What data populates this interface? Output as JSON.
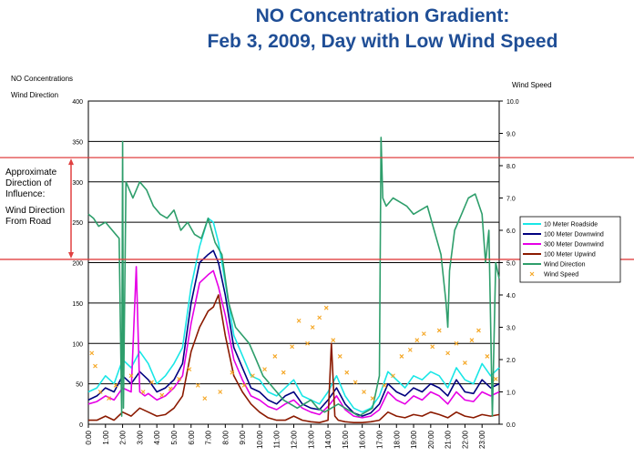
{
  "title_line1": "NO Concentration Gradient:",
  "title_line2": "Feb 3, 2009, Day with Low Wind Speed",
  "left_axis_label_1": "NO Concentrations",
  "left_axis_label_2": "Wind Direction",
  "right_axis_label": "Wind Speed",
  "annotation_1": "Approximate Direction of Influence:",
  "annotation_2": "Wind Direction From Road",
  "chart_data": {
    "type": "line",
    "y_left": {
      "ylim": [
        0,
        400
      ],
      "ticks": [
        0,
        50,
        100,
        150,
        200,
        250,
        300,
        350,
        400
      ]
    },
    "y_right": {
      "ylim": [
        0,
        10
      ],
      "ticks": [
        "0.0",
        "1.0",
        "2.0",
        "3.0",
        "4.0",
        "5.0",
        "6.0",
        "7.0",
        "8.0",
        "9.0",
        "10.0"
      ]
    },
    "x_ticks": [
      "0:00",
      "1:00",
      "2:00",
      "3:00",
      "4:00",
      "5:00",
      "6:00",
      "7:00",
      "8:00",
      "9:00",
      "10:00",
      "11:00",
      "12:00",
      "13:00",
      "14:00",
      "15:00",
      "16:00",
      "17:00",
      "18:00",
      "19:00",
      "20:00",
      "21:00",
      "22:00",
      "23:00"
    ],
    "xlim": [
      0,
      24
    ],
    "reference_lines": [
      330,
      204
    ],
    "reference_color": "#e04040",
    "series": [
      {
        "name": "10 Meter Roadside",
        "color": "#19e6e6",
        "axis": "left",
        "x": [
          0,
          0.5,
          1,
          1.5,
          2,
          2.5,
          3,
          3.5,
          4,
          4.5,
          5,
          5.5,
          6,
          6.5,
          7,
          7.3,
          7.6,
          8,
          8.5,
          9,
          9.5,
          10,
          10.5,
          11,
          11.5,
          12,
          12.5,
          13,
          13.5,
          14,
          14.5,
          15,
          15.5,
          16,
          16.5,
          17,
          17.5,
          18,
          18.5,
          19,
          19.5,
          20,
          20.5,
          21,
          21.5,
          22,
          22.5,
          23,
          23.5,
          24
        ],
        "y": [
          40,
          45,
          60,
          50,
          80,
          70,
          90,
          75,
          50,
          60,
          75,
          95,
          170,
          220,
          255,
          250,
          225,
          175,
          110,
          85,
          60,
          55,
          40,
          35,
          45,
          55,
          35,
          30,
          25,
          40,
          60,
          35,
          20,
          15,
          20,
          35,
          65,
          55,
          45,
          60,
          55,
          65,
          60,
          45,
          70,
          55,
          50,
          75,
          60,
          70
        ]
      },
      {
        "name": "100 Meter Downwind",
        "color": "#00007f",
        "axis": "left",
        "x": [
          0,
          0.5,
          1,
          1.5,
          2,
          2.5,
          3,
          3.5,
          4,
          4.5,
          5,
          5.5,
          6,
          6.5,
          7,
          7.3,
          7.6,
          8,
          8.5,
          9,
          9.5,
          10,
          10.5,
          11,
          11.5,
          12,
          12.5,
          13,
          13.5,
          14,
          14.5,
          15,
          15.5,
          16,
          16.5,
          17,
          17.5,
          18,
          18.5,
          19,
          19.5,
          20,
          20.5,
          21,
          21.5,
          22,
          22.5,
          23,
          23.5,
          24
        ],
        "y": [
          30,
          35,
          45,
          40,
          60,
          50,
          65,
          55,
          40,
          45,
          55,
          75,
          150,
          200,
          210,
          215,
          200,
          160,
          95,
          70,
          45,
          40,
          30,
          25,
          35,
          40,
          25,
          20,
          18,
          30,
          45,
          25,
          14,
          10,
          14,
          25,
          50,
          40,
          35,
          45,
          40,
          50,
          45,
          35,
          55,
          40,
          38,
          55,
          45,
          50
        ]
      },
      {
        "name": "300 Meter Downwind",
        "color": "#e600e6",
        "axis": "left",
        "x": [
          0,
          0.5,
          1,
          1.5,
          2,
          2.5,
          2.8,
          3,
          3.3,
          3.5,
          4,
          4.5,
          5,
          5.5,
          6,
          6.5,
          7,
          7.3,
          7.6,
          8,
          8.5,
          9,
          9.5,
          10,
          10.5,
          11,
          11.5,
          12,
          12.5,
          13,
          13.5,
          14,
          14.5,
          15,
          15.5,
          16,
          16.5,
          17,
          17.5,
          18,
          18.5,
          19,
          19.5,
          20,
          20.5,
          21,
          21.5,
          22,
          22.5,
          23,
          23.5,
          24
        ],
        "y": [
          25,
          28,
          35,
          30,
          45,
          40,
          195,
          40,
          35,
          38,
          30,
          35,
          45,
          60,
          125,
          175,
          185,
          190,
          170,
          135,
          80,
          55,
          35,
          30,
          22,
          18,
          25,
          30,
          20,
          15,
          12,
          22,
          35,
          18,
          10,
          8,
          10,
          18,
          40,
          30,
          25,
          35,
          30,
          40,
          35,
          25,
          40,
          30,
          28,
          40,
          35,
          40
        ]
      },
      {
        "name": "100 Meter Upwind",
        "color": "#8b1a00",
        "axis": "left",
        "x": [
          0,
          0.5,
          1,
          1.5,
          2,
          2.5,
          3,
          3.5,
          4,
          4.5,
          5,
          5.5,
          6,
          6.5,
          7,
          7.3,
          7.6,
          8,
          8.5,
          9,
          9.5,
          10,
          10.5,
          11,
          11.5,
          12,
          12.5,
          13,
          13.5,
          14,
          14.2,
          14.4,
          14.6,
          15,
          15.5,
          16,
          16.5,
          17,
          17.5,
          18,
          18.5,
          19,
          19.5,
          20,
          20.5,
          21,
          21.5,
          22,
          22.5,
          23,
          23.5,
          24
        ],
        "y": [
          5,
          5,
          10,
          5,
          15,
          10,
          20,
          15,
          10,
          12,
          20,
          35,
          90,
          120,
          140,
          145,
          160,
          110,
          60,
          40,
          25,
          15,
          8,
          5,
          5,
          10,
          5,
          3,
          2,
          5,
          100,
          10,
          5,
          3,
          2,
          2,
          3,
          5,
          15,
          10,
          8,
          12,
          10,
          15,
          12,
          8,
          15,
          10,
          8,
          12,
          10,
          12
        ]
      },
      {
        "name": "Wind Direction",
        "color": "#2e9e6b",
        "axis": "left",
        "x": [
          0,
          0.3,
          0.6,
          1,
          1.4,
          1.8,
          1.95,
          2,
          2.05,
          2.2,
          2.6,
          3,
          3.4,
          3.8,
          4.2,
          4.6,
          5,
          5.4,
          5.8,
          6.2,
          6.6,
          7,
          7.4,
          7.8,
          8.2,
          8.6,
          9,
          9.4,
          9.8,
          10.2,
          10.6,
          11,
          11.4,
          11.8,
          12.2,
          12.6,
          13,
          13.4,
          13.8,
          14.2,
          14.6,
          15,
          15.4,
          15.8,
          16.2,
          16.6,
          17,
          17.1,
          17.2,
          17.4,
          17.8,
          18.2,
          18.6,
          19,
          19.4,
          19.8,
          20.2,
          20.6,
          20.9,
          21,
          21.1,
          21.4,
          21.8,
          22.2,
          22.6,
          23,
          23.2,
          23.4,
          23.6,
          23.8,
          24
        ],
        "y": [
          260,
          255,
          245,
          250,
          240,
          230,
          10,
          350,
          20,
          300,
          280,
          300,
          290,
          270,
          260,
          255,
          265,
          240,
          250,
          235,
          230,
          255,
          225,
          210,
          150,
          120,
          110,
          100,
          80,
          60,
          50,
          40,
          30,
          25,
          20,
          25,
          30,
          20,
          15,
          20,
          25,
          20,
          15,
          10,
          15,
          20,
          60,
          355,
          280,
          270,
          280,
          275,
          270,
          260,
          265,
          270,
          240,
          210,
          150,
          120,
          190,
          240,
          260,
          280,
          285,
          260,
          200,
          240,
          10,
          200,
          180
        ]
      }
    ],
    "wind_speed": {
      "name": "Wind Speed",
      "color": "#f5a623",
      "axis": "right",
      "marker": "x",
      "x": [
        0.2,
        0.4,
        0.7,
        1.2,
        1.6,
        2.5,
        3.2,
        3.7,
        4.3,
        4.8,
        5.3,
        5.9,
        6.4,
        6.8,
        7.7,
        8.4,
        9.1,
        9.6,
        10.3,
        10.9,
        11.4,
        11.9,
        12.3,
        12.8,
        13.1,
        13.5,
        13.9,
        14.3,
        14.7,
        15.1,
        15.6,
        16.1,
        16.6,
        17.3,
        17.8,
        18.3,
        18.8,
        19.2,
        19.6,
        20.1,
        20.5,
        21.0,
        21.5,
        22.0,
        22.4,
        22.8,
        23.3,
        23.8
      ],
      "y": [
        2.2,
        1.8,
        1.0,
        0.8,
        1.2,
        1.5,
        1.0,
        1.3,
        0.9,
        1.1,
        1.4,
        1.7,
        1.2,
        0.8,
        1.0,
        1.6,
        1.2,
        1.5,
        1.7,
        2.1,
        1.6,
        2.4,
        3.2,
        2.5,
        3.0,
        3.3,
        3.6,
        2.6,
        2.1,
        1.6,
        1.3,
        1.0,
        0.8,
        1.2,
        1.5,
        2.1,
        2.3,
        2.6,
        2.8,
        2.4,
        2.9,
        2.2,
        2.5,
        1.9,
        2.6,
        2.9,
        2.1,
        1.4
      ]
    }
  }
}
